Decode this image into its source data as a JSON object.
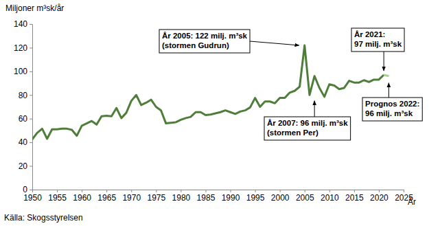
{
  "chart_data": {
    "type": "line",
    "y_label": "Miljoner m³sk/år",
    "x_label": "År",
    "source": "Källa: Skogsstyrelsen",
    "x": [
      1950,
      1951,
      1952,
      1953,
      1954,
      1955,
      1956,
      1957,
      1958,
      1959,
      1960,
      1961,
      1962,
      1963,
      1964,
      1965,
      1966,
      1967,
      1968,
      1969,
      1970,
      1971,
      1972,
      1973,
      1974,
      1975,
      1976,
      1977,
      1978,
      1979,
      1980,
      1981,
      1982,
      1983,
      1984,
      1985,
      1986,
      1987,
      1988,
      1989,
      1990,
      1991,
      1992,
      1993,
      1994,
      1995,
      1996,
      1997,
      1998,
      1999,
      2000,
      2001,
      2002,
      2003,
      2004,
      2005,
      2006,
      2007,
      2008,
      2009,
      2010,
      2011,
      2012,
      2013,
      2014,
      2015,
      2016,
      2017,
      2018,
      2019,
      2020,
      2021,
      2022
    ],
    "series": [
      {
        "color": "#4f7d3a",
        "values": [
          42.5,
          48,
          51.5,
          43,
          51,
          51,
          51.5,
          51.5,
          50.5,
          45.5,
          54,
          56,
          58,
          55,
          62,
          62.5,
          62,
          69,
          60.5,
          65,
          75,
          80,
          71.5,
          73.5,
          76,
          70,
          67,
          56,
          56.5,
          57,
          59,
          60.5,
          61.5,
          65.5,
          65.5,
          63,
          63.5,
          64.5,
          65.5,
          67,
          65.5,
          64,
          66,
          67,
          69.5,
          77.5,
          70,
          74.5,
          74.5,
          73,
          77.5,
          77.5,
          82,
          83.5,
          87,
          122,
          80,
          96,
          86,
          78.5,
          89,
          88,
          85,
          86,
          92,
          90.5,
          90.5,
          92.5,
          91,
          93,
          93,
          97,
          null
        ]
      },
      {
        "color": "#a9d18e",
        "values": [
          null,
          null,
          null,
          null,
          null,
          null,
          null,
          null,
          null,
          null,
          null,
          null,
          null,
          null,
          null,
          null,
          null,
          null,
          null,
          null,
          null,
          null,
          null,
          null,
          null,
          null,
          null,
          null,
          null,
          null,
          null,
          null,
          null,
          null,
          null,
          null,
          null,
          null,
          null,
          null,
          null,
          null,
          null,
          null,
          null,
          null,
          null,
          null,
          null,
          null,
          null,
          null,
          null,
          null,
          null,
          null,
          null,
          null,
          null,
          null,
          null,
          null,
          null,
          null,
          null,
          null,
          null,
          null,
          null,
          null,
          null,
          97,
          96
        ]
      }
    ],
    "xlim": [
      1950,
      2025
    ],
    "xticks": [
      1950,
      1955,
      1960,
      1965,
      1970,
      1975,
      1980,
      1985,
      1990,
      1995,
      2000,
      2005,
      2010,
      2015,
      2020,
      2025
    ],
    "ylim": [
      0,
      140
    ],
    "yticks": [
      0,
      20,
      40,
      60,
      80,
      100,
      120,
      140
    ],
    "grid": false,
    "annotations": [
      {
        "text": [
          "År 2005: 122 milj. m³sk",
          "(stormen Gudrun)"
        ],
        "x": 2005,
        "y": 122
      },
      {
        "text": [
          "År 2007: 96 milj. m³sk",
          "(stormen Per)"
        ],
        "x": 2007,
        "y": 96
      },
      {
        "text": [
          "År 2021:",
          "97 milj. m³sk"
        ],
        "x": 2021,
        "y": 97
      },
      {
        "text": [
          "Prognos 2022:",
          "96 milj. m³sk"
        ],
        "x": 2022,
        "y": 96
      }
    ]
  }
}
